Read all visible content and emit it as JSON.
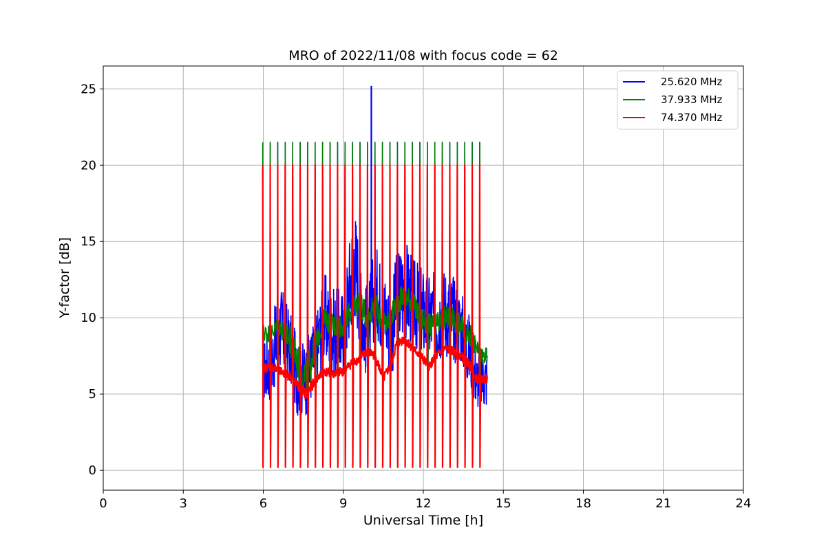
{
  "chart_data": {
    "type": "line",
    "title": "MRO of 2022/11/08 with focus code = 62",
    "xlabel": "Universal Time [h]",
    "ylabel": "Y-factor [dB]",
    "xlim": [
      0,
      24
    ],
    "ylim": [
      -1.3,
      26.5
    ],
    "x_ticks": [
      0,
      3,
      6,
      9,
      12,
      15,
      18,
      21,
      24
    ],
    "y_ticks": [
      0,
      5,
      10,
      15,
      20,
      25
    ],
    "grid": true,
    "legend_position": "top-right",
    "cycle": {
      "start": 5.98,
      "period": 0.2805,
      "count": 30,
      "cal_high": {
        "25.620 MHz": 21.5,
        "37.933 MHz": 21.5,
        "74.370 MHz": 20.0
      },
      "cal_low": {
        "25.620 MHz": 0.5,
        "37.933 MHz": 0.3,
        "74.370 MHz": 0.2
      }
    },
    "series": [
      {
        "name": "25.620 MHz",
        "color": "#0000ff",
        "x": [
          6.0,
          6.3,
          6.6,
          7.0,
          7.3,
          7.6,
          8.0,
          8.3,
          8.6,
          9.0,
          9.2,
          9.4,
          9.6,
          9.8,
          10.0,
          10.2,
          10.5,
          10.8,
          11.0,
          11.3,
          11.6,
          11.9,
          12.2,
          12.5,
          12.8,
          13.1,
          13.4,
          13.7,
          14.0,
          14.1
        ],
        "values": [
          6.5,
          7.0,
          9.5,
          8.0,
          6.0,
          6.0,
          8.0,
          10.0,
          9.0,
          9.0,
          11.5,
          14.0,
          12.0,
          9.0,
          10.0,
          12.0,
          10.5,
          9.0,
          11.0,
          12.0,
          11.0,
          10.5,
          10.0,
          10.0,
          10.5,
          10.0,
          9.5,
          8.0,
          6.0,
          6.0
        ],
        "spread": [
          2.0,
          2.5,
          3.0,
          2.5,
          2.5,
          2.5,
          2.5,
          3.0,
          3.0,
          3.0,
          3.5,
          4.0,
          3.5,
          3.0,
          3.0,
          3.0,
          3.0,
          3.0,
          3.5,
          3.5,
          3.0,
          3.0,
          3.0,
          3.0,
          3.0,
          3.0,
          2.5,
          2.5,
          2.0,
          2.0
        ],
        "spike": {
          "x": 10.05,
          "y": 25.2
        }
      },
      {
        "name": "37.933 MHz",
        "color": "#008000",
        "x": [
          6.0,
          6.3,
          6.6,
          7.0,
          7.3,
          7.6,
          8.0,
          8.3,
          8.6,
          9.0,
          9.3,
          9.6,
          9.9,
          10.2,
          10.5,
          10.8,
          11.0,
          11.3,
          11.6,
          11.9,
          12.2,
          12.5,
          12.8,
          13.1,
          13.4,
          13.7,
          14.0,
          14.1
        ],
        "values": [
          9.0,
          9.0,
          9.5,
          8.5,
          7.0,
          6.0,
          8.5,
          10.0,
          9.5,
          9.5,
          10.5,
          11.0,
          10.0,
          11.0,
          9.5,
          10.0,
          11.0,
          11.5,
          11.0,
          10.0,
          9.5,
          9.5,
          10.0,
          10.0,
          9.5,
          9.0,
          8.0,
          7.5
        ],
        "spread": [
          0.6,
          0.6,
          0.7,
          1.0,
          1.2,
          1.5,
          0.8,
          0.7,
          0.8,
          0.8,
          0.8,
          0.9,
          0.8,
          0.8,
          0.8,
          0.8,
          0.8,
          0.8,
          0.8,
          0.8,
          0.8,
          0.8,
          0.8,
          0.8,
          0.8,
          0.8,
          0.7,
          0.6
        ]
      },
      {
        "name": "74.370 MHz",
        "color": "#ff0000",
        "x": [
          6.0,
          6.3,
          6.6,
          7.0,
          7.3,
          7.6,
          8.0,
          8.3,
          8.6,
          9.0,
          9.3,
          9.6,
          9.9,
          10.2,
          10.5,
          10.8,
          11.0,
          11.3,
          11.6,
          11.9,
          12.2,
          12.5,
          12.8,
          13.1,
          13.4,
          13.7,
          14.0,
          14.1
        ],
        "values": [
          6.7,
          6.8,
          6.5,
          6.2,
          5.5,
          5.0,
          6.0,
          6.5,
          6.3,
          6.5,
          7.0,
          7.3,
          7.8,
          7.5,
          6.0,
          7.0,
          8.3,
          8.6,
          8.0,
          7.5,
          6.8,
          7.5,
          8.0,
          7.8,
          7.5,
          7.0,
          6.0,
          6.0
        ],
        "spread": [
          0.3,
          0.3,
          0.3,
          0.3,
          0.3,
          0.4,
          0.3,
          0.3,
          0.3,
          0.3,
          0.3,
          0.3,
          0.3,
          0.3,
          0.3,
          0.3,
          0.3,
          0.3,
          0.3,
          0.3,
          0.3,
          0.3,
          0.3,
          0.3,
          0.3,
          0.3,
          0.3,
          0.3
        ]
      }
    ]
  }
}
